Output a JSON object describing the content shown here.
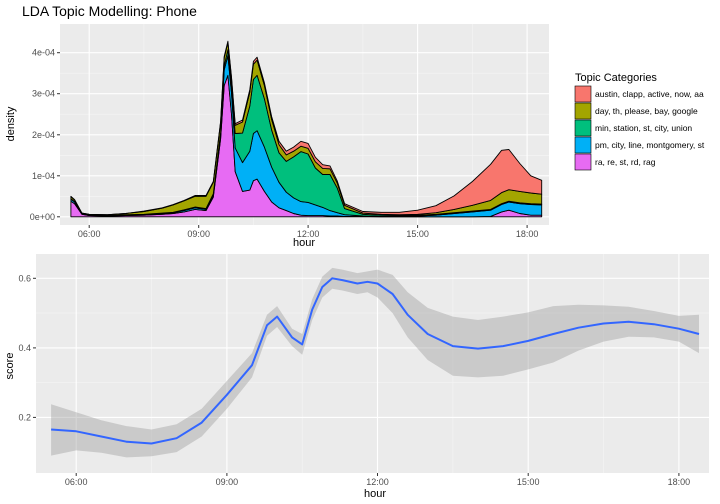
{
  "chart_data": [
    {
      "type": "area",
      "subtype": "stacked-density",
      "title": "LDA Topic Modelling: Phone",
      "xlabel": "hour",
      "ylabel": "density",
      "xlim": [
        5.2,
        18.6
      ],
      "ylim": [
        -2e-05,
        0.00047
      ],
      "x_ticks": [
        6,
        9,
        12,
        15,
        18
      ],
      "x_tick_labels": [
        "06:00",
        "09:00",
        "12:00",
        "15:00",
        "18:00"
      ],
      "y_ticks": [
        0,
        0.0001,
        0.0002,
        0.0003,
        0.0004
      ],
      "y_tick_labels": [
        "0e+00",
        "1e-04",
        "2e-04",
        "3e-04",
        "4e-04"
      ],
      "grid": true,
      "legend": {
        "title": "Topic Categories",
        "position": "right",
        "entries": [
          {
            "label": "austin, clapp, active, now, aa",
            "color": "#F8766D"
          },
          {
            "label": "day, th, please, bay, google",
            "color": "#A3A500"
          },
          {
            "label": "min, station, st, city, union",
            "color": "#00BF7D"
          },
          {
            "label": "pm, city, line, montgomery, st",
            "color": "#00B0F6"
          },
          {
            "label": "ra, re, st, rd, rag",
            "color": "#E76BF3"
          }
        ]
      },
      "x": [
        5.5,
        5.6,
        5.8,
        6,
        6.5,
        7,
        7.5,
        8,
        8.3,
        8.6,
        8.9,
        9.2,
        9.4,
        9.6,
        9.7,
        9.8,
        9.9,
        10,
        10.2,
        10.4,
        10.5,
        10.6,
        10.8,
        11,
        11.2,
        11.4,
        11.6,
        11.8,
        12,
        12.2,
        12.4,
        12.6,
        12.8,
        13,
        13.5,
        14,
        14.5,
        15,
        15.5,
        16,
        16.5,
        17,
        17.3,
        17.5,
        17.8,
        18.1,
        18.4
      ],
      "series": [
        {
          "name": "ra, re, st, rd, rag",
          "values": [
            3.8e-05,
            3.2e-05,
            6e-06,
            3e-06,
            2e-06,
            3e-06,
            4e-06,
            6e-06,
            8e-06,
            1.2e-05,
            1.8e-05,
            1.5e-05,
            4.8e-05,
            0.00019,
            0.00032,
            0.000345,
            0.00025,
            0.00011,
            6.2e-05,
            6.5e-05,
            8.8e-05,
            9.2e-05,
            6.2e-05,
            3.6e-05,
            2.2e-05,
            1.5e-05,
            8e-06,
            4e-06,
            3e-06,
            3e-06,
            3e-06,
            2e-06,
            2e-06,
            1e-06,
            1e-06,
            0,
            0,
            0,
            0,
            0,
            0,
            1e-06,
            1.2e-05,
            1.6e-05,
            8e-06,
            4e-06,
            4e-06
          ]
        },
        {
          "name": "pm, city, line, montgomery, st",
          "values": [
            5e-06,
            4e-06,
            1e-06,
            1e-06,
            1e-06,
            1e-06,
            1e-06,
            2e-06,
            2e-06,
            3e-06,
            4e-06,
            3e-06,
            5e-06,
            1e-05,
            3.8e-05,
            4.8e-05,
            5.2e-05,
            5.8e-05,
            7e-05,
            9.5e-05,
            0.000115,
            0.000118,
            0.000108,
            8.5e-05,
            6.2e-05,
            4.5e-05,
            3.8e-05,
            3.3e-05,
            3.2e-05,
            2.6e-05,
            2e-05,
            1.3e-05,
            8e-06,
            4e-06,
            1e-06,
            1e-06,
            1e-06,
            2e-06,
            4e-06,
            8e-06,
            1.2e-05,
            1.5e-05,
            1.8e-05,
            2e-05,
            2.4e-05,
            2.6e-05,
            2.5e-05
          ]
        },
        {
          "name": "min, station, st, city, union",
          "values": [
            1e-06,
            1e-06,
            0,
            0,
            0,
            1e-06,
            1e-06,
            1e-06,
            1e-06,
            2e-06,
            2e-06,
            2e-06,
            3e-06,
            5e-06,
            1e-05,
            1.4e-05,
            1.8e-05,
            3.5e-05,
            7.2e-05,
            0.00011,
            0.000132,
            0.000135,
            0.000118,
            9e-05,
            7.2e-05,
            7.5e-05,
            0.0001,
            0.000122,
            0.000118,
            9e-05,
            8e-05,
            8.8e-05,
            6e-05,
            1.5e-05,
            4e-06,
            3e-06,
            2e-06,
            2e-06,
            2e-06,
            2e-06,
            2e-06,
            2e-06,
            2e-06,
            2e-06,
            2e-06,
            2e-06,
            2e-06
          ]
        },
        {
          "name": "day, th, please, bay, google",
          "values": [
            5e-06,
            4e-06,
            2e-06,
            2e-06,
            2e-06,
            3e-06,
            7e-06,
            1.2e-05,
            1.8e-05,
            2.2e-05,
            2.6e-05,
            3e-05,
            2.8e-05,
            2.5e-05,
            2e-05,
            1.8e-05,
            1.8e-05,
            2e-05,
            2.7e-05,
            3.4e-05,
            3.7e-05,
            3.7e-05,
            3.2e-05,
            2.6e-05,
            2e-05,
            1.6e-05,
            1.4e-05,
            1.3e-05,
            1.4e-05,
            1.5e-05,
            1.5e-05,
            1.4e-05,
            1.2e-05,
            8e-06,
            3e-06,
            2e-06,
            2e-06,
            2e-06,
            4e-06,
            8e-06,
            1.4e-05,
            2.2e-05,
            2.7e-05,
            2.8e-05,
            2.8e-05,
            2.6e-05,
            2.4e-05
          ]
        },
        {
          "name": "austin, clapp, active, now, aa",
          "values": [
            1e-06,
            1e-06,
            0,
            0,
            0,
            0,
            1e-06,
            1e-06,
            1e-06,
            1e-06,
            2e-06,
            2e-06,
            2e-06,
            2e-06,
            3e-06,
            3e-06,
            3e-06,
            4e-06,
            5e-06,
            6e-06,
            7e-06,
            7e-06,
            7e-06,
            7e-06,
            8e-06,
            9e-06,
            1e-05,
            1.2e-05,
            1.2e-05,
            1.1e-05,
            9e-06,
            7e-06,
            5e-06,
            4e-06,
            4e-06,
            5e-06,
            6e-06,
            1e-05,
            1.7e-05,
            3.3e-05,
            5.8e-05,
            8.8e-05,
            0.000103,
            9.8e-05,
            6.8e-05,
            4.2e-05,
            3.4e-05
          ]
        }
      ]
    },
    {
      "type": "line",
      "subtype": "smoothed-with-confidence-band",
      "xlabel": "hour",
      "ylabel": "score",
      "xlim": [
        5.2,
        18.6
      ],
      "ylim": [
        0.04,
        0.67
      ],
      "x_ticks": [
        6,
        9,
        12,
        15,
        18
      ],
      "x_tick_labels": [
        "06:00",
        "09:00",
        "12:00",
        "15:00",
        "18:00"
      ],
      "y_ticks": [
        0.2,
        0.4,
        0.6
      ],
      "y_tick_labels": [
        "0.2",
        "0.4",
        "0.6"
      ],
      "grid": true,
      "line_color": "#3366FF",
      "band_color": "#999999",
      "x": [
        5.5,
        6,
        6.5,
        7,
        7.5,
        8,
        8.5,
        9,
        9.5,
        9.8,
        10,
        10.3,
        10.5,
        10.7,
        10.9,
        11.1,
        11.3,
        11.6,
        11.8,
        12,
        12.3,
        12.6,
        13,
        13.5,
        14,
        14.5,
        15,
        15.5,
        16,
        16.5,
        17,
        17.5,
        18,
        18.4
      ],
      "values": [
        0.165,
        0.16,
        0.145,
        0.13,
        0.125,
        0.14,
        0.185,
        0.265,
        0.35,
        0.465,
        0.49,
        0.43,
        0.41,
        0.51,
        0.575,
        0.6,
        0.595,
        0.585,
        0.59,
        0.585,
        0.555,
        0.495,
        0.44,
        0.405,
        0.398,
        0.405,
        0.42,
        0.44,
        0.458,
        0.47,
        0.475,
        0.468,
        0.455,
        0.44
      ],
      "lower": [
        0.09,
        0.105,
        0.098,
        0.085,
        0.088,
        0.1,
        0.145,
        0.225,
        0.315,
        0.435,
        0.46,
        0.405,
        0.38,
        0.48,
        0.545,
        0.57,
        0.565,
        0.555,
        0.56,
        0.545,
        0.5,
        0.43,
        0.365,
        0.32,
        0.315,
        0.32,
        0.338,
        0.358,
        0.392,
        0.418,
        0.432,
        0.43,
        0.418,
        0.385
      ],
      "upper": [
        0.238,
        0.215,
        0.192,
        0.175,
        0.165,
        0.18,
        0.225,
        0.305,
        0.385,
        0.495,
        0.52,
        0.455,
        0.44,
        0.54,
        0.605,
        0.63,
        0.625,
        0.615,
        0.62,
        0.625,
        0.61,
        0.56,
        0.515,
        0.49,
        0.48,
        0.49,
        0.502,
        0.52,
        0.524,
        0.522,
        0.518,
        0.506,
        0.492,
        0.495
      ]
    }
  ]
}
